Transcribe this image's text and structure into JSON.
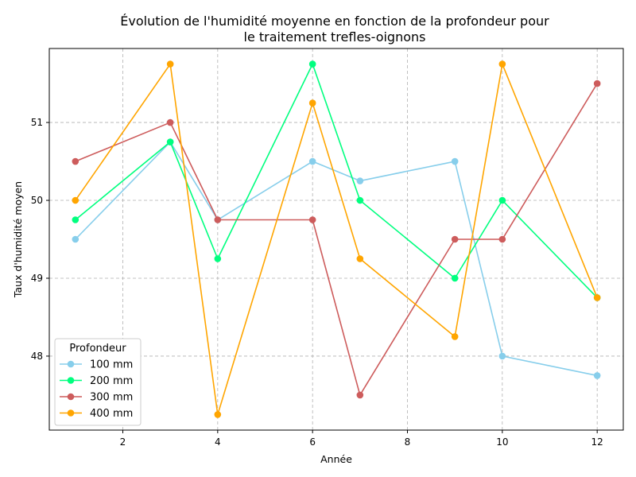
{
  "chart_data": {
    "type": "line",
    "title_line1": "Évolution de l'humidité moyenne en fonction de la profondeur pour",
    "title_line2": "le traitement trefles-oignons",
    "xlabel": "Année",
    "ylabel": "Taux d'humidité moyen",
    "xlim": [
      0.45,
      12.55
    ],
    "ylim": [
      47.05,
      51.95
    ],
    "xticks": [
      2,
      4,
      6,
      8,
      10,
      12
    ],
    "yticks": [
      48,
      49,
      50,
      51
    ],
    "grid": true,
    "legend_position": "lower-left",
    "legend_title": "Profondeur",
    "x": [
      1,
      3,
      4,
      6,
      7,
      9,
      10,
      12
    ],
    "series": [
      {
        "name": "100 mm",
        "color": "#87CEEB",
        "values": [
          49.5,
          50.75,
          49.75,
          50.5,
          50.25,
          50.5,
          48.0,
          47.75
        ]
      },
      {
        "name": "200 mm",
        "color": "#00FF7F",
        "values": [
          49.75,
          50.75,
          49.25,
          51.75,
          50.0,
          49.0,
          50.0,
          48.75
        ]
      },
      {
        "name": "300 mm",
        "color": "#CD5C5C",
        "values": [
          50.5,
          51.0,
          49.75,
          49.75,
          47.5,
          49.5,
          49.5,
          51.5
        ]
      },
      {
        "name": "400 mm",
        "color": "#FFA500",
        "values": [
          50.0,
          51.75,
          47.25,
          51.25,
          49.25,
          48.25,
          51.75,
          48.75
        ]
      }
    ]
  }
}
